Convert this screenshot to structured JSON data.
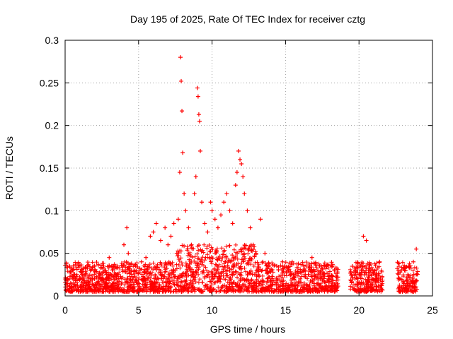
{
  "chart_data": {
    "type": "scatter",
    "title": "Day 195 of 2025, Rate Of TEC Index for receiver cztg",
    "xlabel": "GPS time / hours",
    "ylabel": "ROTI / TECUs",
    "xlim": [
      0,
      25
    ],
    "ylim": [
      0,
      0.3
    ],
    "x_ticks": [
      "0",
      "5",
      "10",
      "15",
      "20",
      "25"
    ],
    "y_ticks": [
      "0",
      "0.05",
      "0.1",
      "0.15",
      "0.2",
      "0.25",
      "0.3"
    ],
    "grid": true,
    "legend": "none",
    "marker": "plus",
    "color": "#ff0000",
    "series": [
      {
        "x": [
          0.1,
          0.3,
          0.5,
          0.8,
          1.0,
          1.3,
          1.6,
          2.0,
          2.4,
          2.7,
          3.0,
          3.3,
          3.6,
          4.0,
          4.2,
          4.3,
          4.5,
          4.8,
          5.2,
          5.5,
          5.8,
          6.0,
          6.2,
          6.5,
          6.8,
          7.0,
          7.2,
          7.4,
          7.6,
          7.7,
          7.8,
          7.85,
          7.9,
          7.95,
          8.0,
          8.1,
          8.2,
          8.4,
          8.6,
          8.8,
          8.9,
          9.0,
          9.05,
          9.1,
          9.15,
          9.2,
          9.3,
          9.5,
          9.7,
          9.9,
          10.0,
          10.2,
          10.4,
          10.6,
          10.8,
          11.0,
          11.2,
          11.4,
          11.6,
          11.7,
          11.8,
          11.9,
          12.0,
          12.1,
          12.2,
          12.4,
          12.6,
          12.8,
          13.0,
          13.3,
          13.6,
          14.0,
          14.4,
          14.8,
          15.2,
          15.6,
          16.0,
          16.4,
          16.8,
          17.2,
          17.6,
          17.9,
          18.2,
          19.5,
          19.8,
          20.1,
          20.3,
          20.5,
          20.8,
          21.1,
          21.4,
          22.8,
          23.1,
          23.4,
          23.7,
          23.9
        ],
        "y": [
          0.02,
          0.035,
          0.03,
          0.025,
          0.02,
          0.018,
          0.015,
          0.02,
          0.025,
          0.03,
          0.045,
          0.035,
          0.025,
          0.06,
          0.08,
          0.05,
          0.03,
          0.035,
          0.04,
          0.045,
          0.07,
          0.075,
          0.085,
          0.065,
          0.08,
          0.06,
          0.07,
          0.085,
          0.05,
          0.09,
          0.145,
          0.28,
          0.252,
          0.217,
          0.168,
          0.12,
          0.1,
          0.08,
          0.06,
          0.12,
          0.14,
          0.244,
          0.234,
          0.213,
          0.205,
          0.17,
          0.11,
          0.085,
          0.075,
          0.11,
          0.1,
          0.09,
          0.08,
          0.095,
          0.11,
          0.12,
          0.1,
          0.085,
          0.13,
          0.145,
          0.17,
          0.16,
          0.155,
          0.14,
          0.12,
          0.1,
          0.08,
          0.06,
          0.05,
          0.09,
          0.05,
          0.03,
          0.035,
          0.04,
          0.03,
          0.025,
          0.02,
          0.035,
          0.045,
          0.03,
          0.025,
          0.02,
          0.035,
          0.025,
          0.03,
          0.035,
          0.07,
          0.065,
          0.03,
          0.025,
          0.04,
          0.028,
          0.03,
          0.035,
          0.04,
          0.055
        ],
        "background_band": [
          0.005,
          0.04
        ]
      }
    ]
  }
}
